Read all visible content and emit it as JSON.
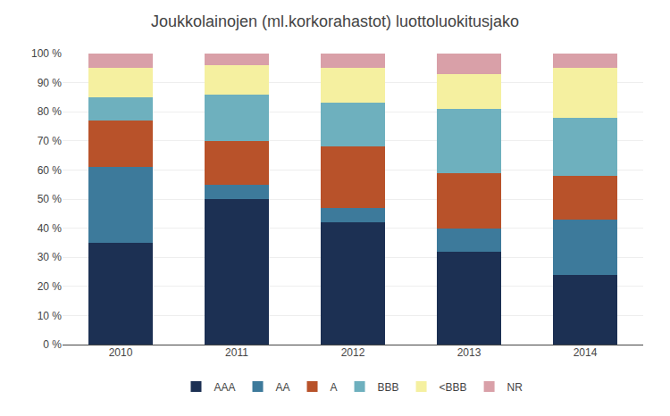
{
  "chart_data": {
    "type": "bar",
    "stacked": true,
    "title": "Joukkolainojen (ml.korkorahastot) luottoluokitusjako",
    "categories": [
      "2010",
      "2011",
      "2012",
      "2013",
      "2014"
    ],
    "series": [
      {
        "name": "AAA",
        "color": "#1c3053",
        "values": [
          35,
          50,
          42,
          32,
          24
        ]
      },
      {
        "name": "AA",
        "color": "#3d7a9b",
        "values": [
          26,
          5,
          5,
          8,
          19
        ]
      },
      {
        "name": "A",
        "color": "#b8522a",
        "values": [
          16,
          15,
          21,
          19,
          15
        ]
      },
      {
        "name": "BBB",
        "color": "#6eb0be",
        "values": [
          8,
          16,
          15,
          22,
          20
        ]
      },
      {
        "name": "<BBB",
        "color": "#f5f0a0",
        "values": [
          10,
          10,
          12,
          12,
          17
        ]
      },
      {
        "name": "NR",
        "color": "#d9a0a8",
        "values": [
          5,
          4,
          5,
          7,
          5
        ]
      }
    ],
    "ylim": [
      0,
      100
    ],
    "yticks": [
      {
        "value": 0,
        "label": "0 %"
      },
      {
        "value": 10,
        "label": "10 %"
      },
      {
        "value": 20,
        "label": "20 %"
      },
      {
        "value": 30,
        "label": "30 %"
      },
      {
        "value": 40,
        "label": "40 %"
      },
      {
        "value": 50,
        "label": "50 %"
      },
      {
        "value": 60,
        "label": "60 %"
      },
      {
        "value": 70,
        "label": "70 %"
      },
      {
        "value": 80,
        "label": "80 %"
      },
      {
        "value": 90,
        "label": "90 %"
      },
      {
        "value": 100,
        "label": "100 %"
      }
    ],
    "grid": true,
    "legend": "bottom"
  }
}
